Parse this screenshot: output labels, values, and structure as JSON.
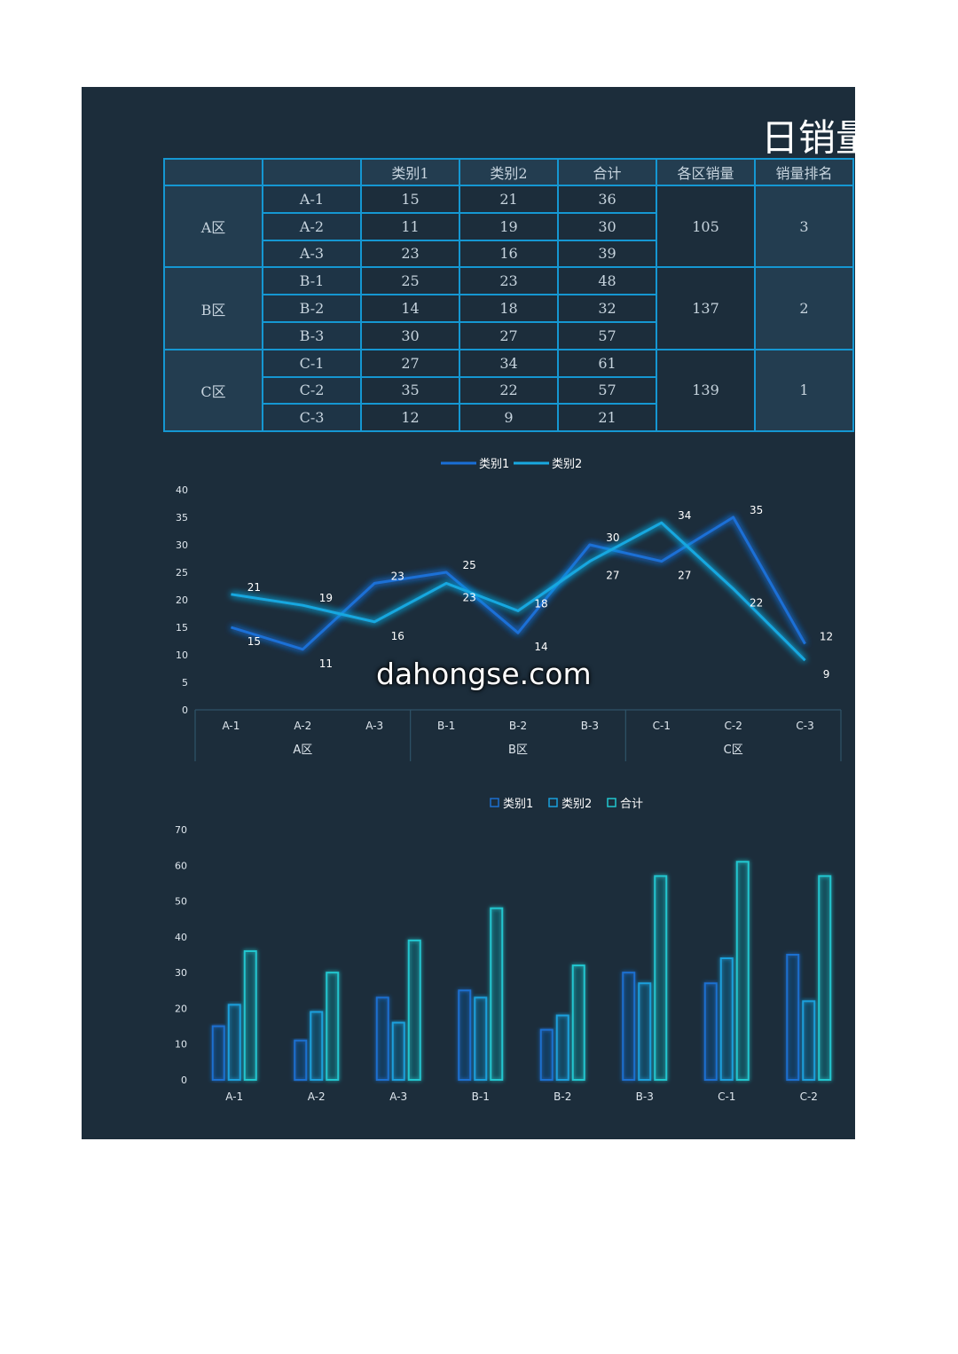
{
  "title": "日销量",
  "table": {
    "headers": [
      "",
      "",
      "类别1",
      "类别2",
      "合计",
      "各区销量",
      "销量排名"
    ],
    "zones": [
      {
        "zone": "A区",
        "zone_total": "105",
        "rank": "3",
        "rows": [
          [
            "A-1",
            "15",
            "21",
            "36"
          ],
          [
            "A-2",
            "11",
            "19",
            "30"
          ],
          [
            "A-3",
            "23",
            "16",
            "39"
          ]
        ]
      },
      {
        "zone": "B区",
        "zone_total": "137",
        "rank": "2",
        "rows": [
          [
            "B-1",
            "25",
            "23",
            "48"
          ],
          [
            "B-2",
            "14",
            "18",
            "32"
          ],
          [
            "B-3",
            "30",
            "27",
            "57"
          ]
        ]
      },
      {
        "zone": "C区",
        "zone_total": "139",
        "rank": "1",
        "rows": [
          [
            "C-1",
            "27",
            "34",
            "61"
          ],
          [
            "C-2",
            "35",
            "22",
            "57"
          ],
          [
            "C-3",
            "12",
            "9",
            "21"
          ]
        ]
      }
    ]
  },
  "watermark": "dahongse.com",
  "chart_data": [
    {
      "type": "line",
      "categories": [
        "A-1",
        "A-2",
        "A-3",
        "B-1",
        "B-2",
        "B-3",
        "C-1",
        "C-2",
        "C-3"
      ],
      "groups": [
        {
          "label": "A区",
          "span": 3
        },
        {
          "label": "B区",
          "span": 3
        },
        {
          "label": "C区",
          "span": 3
        }
      ],
      "series": [
        {
          "name": "类别1",
          "values": [
            15,
            11,
            23,
            25,
            14,
            30,
            27,
            35,
            12
          ],
          "color": "#1a6fd6"
        },
        {
          "name": "类别2",
          "values": [
            21,
            19,
            16,
            23,
            18,
            27,
            34,
            22,
            9
          ],
          "color": "#19a8e0"
        }
      ],
      "ylim": [
        0,
        40
      ],
      "yticks": [
        0,
        5,
        10,
        15,
        20,
        25,
        30,
        35,
        40
      ],
      "legend": "top-center",
      "grid": false
    },
    {
      "type": "bar",
      "categories": [
        "A-1",
        "A-2",
        "A-3",
        "B-1",
        "B-2",
        "B-3",
        "C-1",
        "C-2"
      ],
      "series": [
        {
          "name": "类别1",
          "values": [
            15,
            11,
            23,
            25,
            14,
            30,
            27,
            35
          ],
          "color": "#1d6fd0"
        },
        {
          "name": "类别2",
          "values": [
            21,
            19,
            16,
            23,
            18,
            27,
            34,
            22
          ],
          "color": "#1aa0dc"
        },
        {
          "name": "合计",
          "values": [
            36,
            30,
            39,
            48,
            32,
            57,
            61,
            57
          ],
          "color": "#22c6cf"
        }
      ],
      "ylim": [
        0,
        70
      ],
      "yticks": [
        0,
        10,
        20,
        30,
        40,
        50,
        60,
        70
      ],
      "legend": "top-center",
      "grid": false
    }
  ]
}
